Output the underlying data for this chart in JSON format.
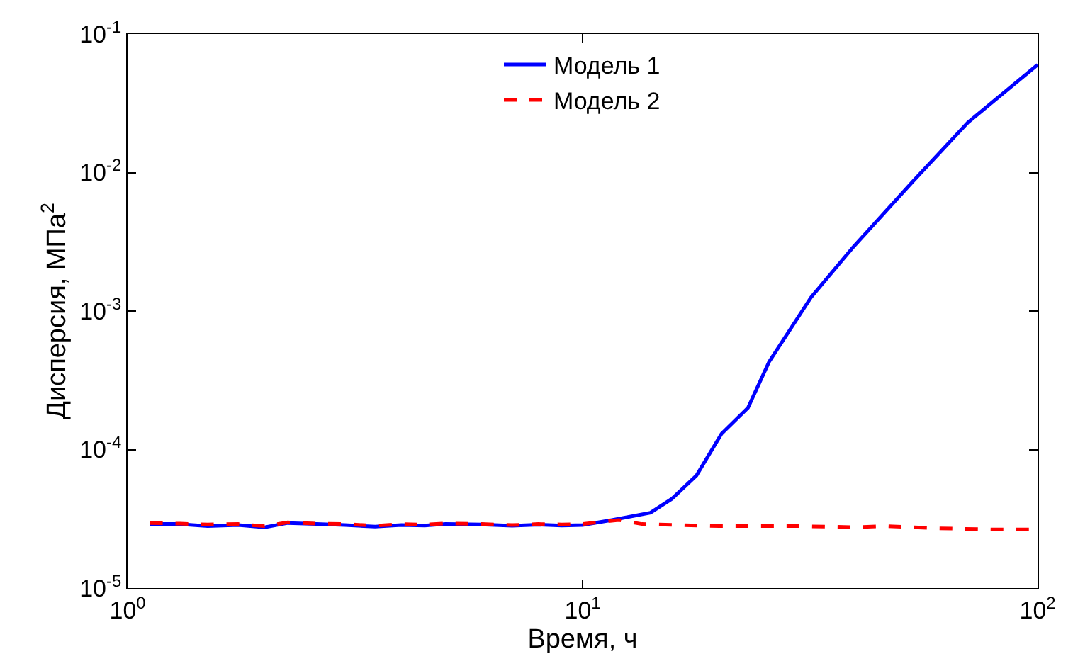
{
  "chart_data": {
    "type": "line",
    "xlabel": "Время, ч",
    "ylabel": "Дисперсия, МПа$^{2}$",
    "log": "xy",
    "xlim": [
      1,
      100
    ],
    "ylim": [
      1e-05,
      0.1
    ],
    "xticks": [
      {
        "value": 1,
        "label": "10$^{0}$"
      },
      {
        "value": 10,
        "label": "10$^{1}$"
      },
      {
        "value": 100,
        "label": "10$^{2}$"
      }
    ],
    "yticks": [
      {
        "value": 1e-05,
        "label": "10$^{-5}$"
      },
      {
        "value": 0.0001,
        "label": "10$^{-4}$"
      },
      {
        "value": 0.001,
        "label": "10$^{-3}$"
      },
      {
        "value": 0.01,
        "label": "10$^{-2}$"
      },
      {
        "value": 0.1,
        "label": "10$^{-1}$"
      }
    ],
    "grid": false,
    "legend": "top",
    "marker": "none",
    "series": [
      {
        "name": "Модель 1",
        "color": "#0000ff",
        "line_style": "solid",
        "x": [
          1.12,
          1.3,
          1.5,
          1.75,
          2.0,
          2.25,
          2.6,
          3.0,
          3.5,
          4.0,
          4.5,
          5.0,
          6.0,
          7.0,
          8.0,
          9.0,
          10.0,
          11.6,
          14.1,
          15.7,
          17.8,
          20.2,
          23.1,
          25.7,
          31.8,
          39.2,
          53,
          70.3,
          100
        ],
        "values": [
          2.9e-05,
          2.9e-05,
          2.8e-05,
          2.85e-05,
          2.75e-05,
          2.95e-05,
          2.9e-05,
          2.85e-05,
          2.78e-05,
          2.85e-05,
          2.83e-05,
          2.9e-05,
          2.88e-05,
          2.82e-05,
          2.87e-05,
          2.83e-05,
          2.85e-05,
          3.1e-05,
          3.5e-05,
          4.4e-05,
          6.5e-05,
          0.00013,
          0.0002,
          0.00043,
          0.00126,
          0.00286,
          0.0085,
          0.023,
          0.06
        ]
      },
      {
        "name": "Модель 2",
        "color": "#ff0000",
        "line_style": "dashed",
        "x": [
          1.12,
          1.3,
          1.5,
          1.75,
          2.0,
          2.25,
          2.6,
          3.0,
          3.5,
          4.0,
          4.5,
          5.0,
          6.0,
          7.0,
          8.0,
          9.0,
          10.0,
          12,
          13.5,
          20,
          30,
          40,
          46,
          60,
          80,
          100
        ],
        "values": [
          2.95e-05,
          2.92e-05,
          2.88e-05,
          2.9e-05,
          2.8e-05,
          2.98e-05,
          2.92e-05,
          2.9e-05,
          2.82e-05,
          2.9e-05,
          2.87e-05,
          2.93e-05,
          2.9e-05,
          2.85e-05,
          2.9e-05,
          2.88e-05,
          2.9e-05,
          3.1e-05,
          2.9e-05,
          2.8e-05,
          2.8e-05,
          2.75e-05,
          2.8e-05,
          2.7e-05,
          2.65e-05,
          2.65e-05
        ]
      }
    ]
  }
}
